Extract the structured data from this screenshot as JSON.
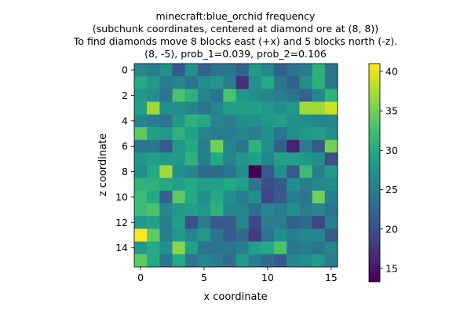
{
  "title_lines": [
    "minecraft:blue_orchid frequency",
    "(subchunk coordinates, centered at diamond ore at (8, 8))",
    "To find diamonds move 8 blocks east (+x) and 5 blocks north (-z).",
    "(8, -5), prob_1=0.039, prob_2=0.106"
  ],
  "chart_data": {
    "type": "heatmap",
    "xlabel": "x coordinate",
    "ylabel": "z coordinate",
    "x_ticks": [
      0,
      5,
      10,
      15
    ],
    "y_ticks": [
      0,
      2,
      4,
      6,
      8,
      10,
      12,
      14
    ],
    "colorbar_ticks": [
      15,
      20,
      25,
      30,
      35,
      40
    ],
    "color_range": [
      13.3,
      41
    ],
    "colormap": "viridis",
    "grid": [
      [
        26,
        25,
        27,
        21,
        27,
        22,
        24,
        24,
        22,
        28,
        26,
        22,
        24,
        25,
        31,
        24
      ],
      [
        30,
        28,
        25,
        26,
        24,
        27,
        28,
        25,
        17,
        27,
        30,
        24,
        22,
        27,
        31,
        24
      ],
      [
        28,
        27,
        24,
        33,
        31,
        26,
        24,
        33,
        28,
        27,
        26,
        25,
        24,
        22,
        26,
        31
      ],
      [
        29,
        37,
        27,
        27,
        26,
        24,
        26,
        29,
        29,
        29,
        28,
        27,
        28,
        37,
        37,
        39
      ],
      [
        26,
        25,
        24,
        28,
        31,
        30,
        26,
        25,
        27,
        27,
        28,
        29,
        27,
        27,
        26,
        26
      ],
      [
        34,
        29,
        28,
        31,
        29,
        26,
        25,
        25,
        26,
        25,
        27,
        24,
        27,
        28,
        29,
        27
      ],
      [
        24,
        24,
        21,
        28,
        30,
        25,
        35,
        26,
        24,
        31,
        27,
        22,
        16,
        25,
        21,
        35
      ],
      [
        28,
        29,
        28,
        28,
        31,
        25,
        30,
        26,
        28,
        29,
        26,
        29,
        29,
        28,
        27,
        20
      ],
      [
        27,
        30,
        37,
        27,
        26,
        23,
        23,
        24,
        27,
        13.3,
        21,
        27,
        21,
        32,
        25,
        28
      ],
      [
        31,
        31,
        30,
        29,
        30,
        29,
        29,
        30,
        29,
        24,
        20,
        21,
        27,
        25,
        26,
        27
      ],
      [
        32,
        30,
        22,
        34,
        30,
        27,
        30,
        27,
        25,
        27,
        19,
        21,
        25,
        24,
        35,
        25
      ],
      [
        32,
        33,
        26,
        28,
        29,
        28,
        31,
        26,
        26,
        23,
        26,
        25,
        27,
        25,
        26,
        24
      ],
      [
        28,
        29,
        25,
        29,
        20,
        25,
        21,
        21,
        26,
        19,
        25,
        25,
        22,
        23,
        19,
        25
      ],
      [
        41,
        34,
        25,
        28,
        26,
        28,
        24,
        21,
        23,
        18,
        24,
        27,
        25,
        26,
        26,
        21
      ],
      [
        28,
        30,
        27,
        36,
        29,
        24,
        24,
        24,
        25,
        29,
        30,
        33,
        24,
        25,
        24,
        26
      ],
      [
        34,
        30,
        24,
        30,
        24,
        26,
        25,
        23,
        28,
        25,
        23,
        21,
        26,
        27,
        28,
        25
      ]
    ]
  }
}
